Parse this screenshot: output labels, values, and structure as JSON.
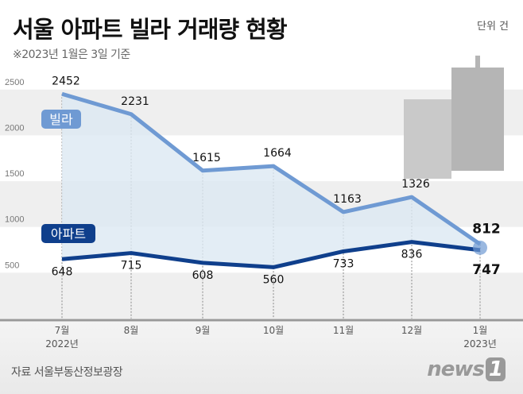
{
  "title": "서울 아파트 빌라 거래량 현황",
  "subtitle": "※2023년 1월은 3일 기준",
  "unit": "단위 건",
  "source": "자료 서울부동산정보광장",
  "logo": "news1",
  "chart_data": {
    "type": "line",
    "categories": [
      "7월\n2022년",
      "8월",
      "9월",
      "10월",
      "11월",
      "12월",
      "1월\n2023년"
    ],
    "x_labels": [
      [
        "7월",
        "2022년"
      ],
      [
        "8월",
        ""
      ],
      [
        "9월",
        ""
      ],
      [
        "10월",
        ""
      ],
      [
        "11월",
        ""
      ],
      [
        "12월",
        ""
      ],
      [
        "1월",
        "2023년"
      ]
    ],
    "yticks": [
      500,
      1000,
      1500,
      2000,
      2500
    ],
    "ylim": [
      0,
      2500
    ],
    "series": [
      {
        "name": "빌라",
        "values": [
          2452,
          2231,
          1615,
          1664,
          1163,
          1326,
          812
        ],
        "color": "#6f9ad3",
        "fill": "#dce8f2"
      },
      {
        "name": "아파트",
        "values": [
          648,
          715,
          608,
          560,
          733,
          836,
          747
        ],
        "color": "#0f3f8c"
      }
    ]
  }
}
